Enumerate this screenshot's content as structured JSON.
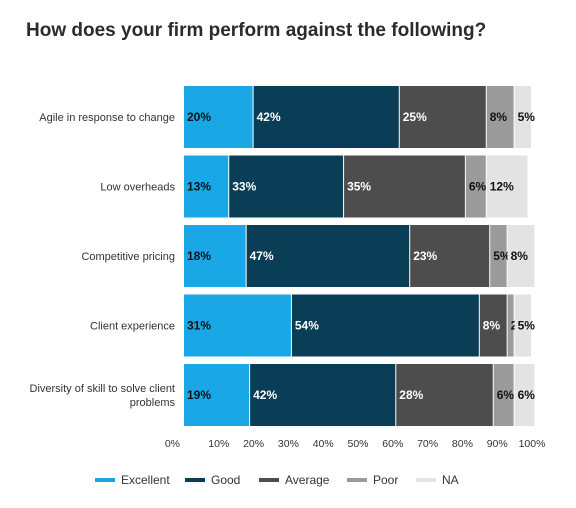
{
  "chart_data": {
    "type": "bar",
    "orientation": "horizontal",
    "stacked": true,
    "title": "How does your firm perform against the following?",
    "categories": [
      [
        "Agile in response to change"
      ],
      [
        "Low overheads"
      ],
      [
        "Competitive pricing"
      ],
      [
        "Client experience"
      ],
      [
        "Diversity of skill to solve client",
        "problems"
      ]
    ],
    "series": [
      {
        "name": "Excellent",
        "color": "#1aa7e6",
        "text_color": "#111111",
        "values": [
          20,
          13,
          18,
          31,
          19
        ]
      },
      {
        "name": "Good",
        "color": "#0a3d56",
        "text_color": "#ffffff",
        "values": [
          42,
          33,
          47,
          54,
          42
        ]
      },
      {
        "name": "Average",
        "color": "#4d4d4d",
        "text_color": "#ffffff",
        "values": [
          25,
          35,
          23,
          8,
          28
        ]
      },
      {
        "name": "Poor",
        "color": "#9b9b9b",
        "text_color": "#111111",
        "values": [
          8,
          6,
          5,
          2,
          6
        ]
      },
      {
        "name": "NA",
        "color": "#e3e3e3",
        "text_color": "#111111",
        "values": [
          5,
          12,
          8,
          5,
          6
        ]
      }
    ],
    "data_labels": [
      [
        "20%",
        "42%",
        "25%",
        "8%",
        "5%"
      ],
      [
        "13%",
        "33%",
        "35%",
        "6%",
        "12%"
      ],
      [
        "18%",
        "47%",
        "23%",
        "5%",
        "8%"
      ],
      [
        "31%",
        "54%",
        "8%",
        "2%",
        "5%"
      ],
      [
        "19%",
        "42%",
        "28%",
        "6%",
        "6%"
      ]
    ],
    "xlim": [
      0,
      100
    ],
    "xticks": [
      "0%",
      "10%",
      "20%",
      "30%",
      "40%",
      "50%",
      "60%",
      "70%",
      "80%",
      "90%",
      "100%"
    ],
    "xlabel": "",
    "ylabel": "",
    "grid": false,
    "legend_position": "bottom"
  }
}
